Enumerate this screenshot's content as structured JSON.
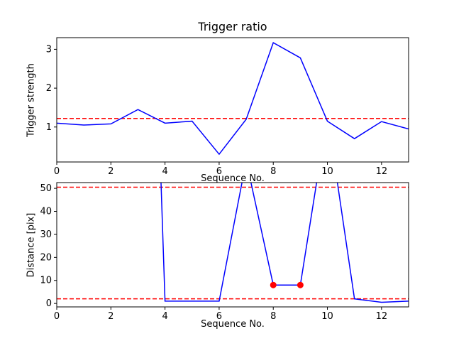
{
  "figure": {
    "background": "#ffffff",
    "line_color": "#0000ff",
    "threshold_color": "#ff0000",
    "marker_color": "#ff0000"
  },
  "chart_data": [
    {
      "type": "line",
      "title": "Trigger ratio",
      "xlabel": "Sequence No.",
      "ylabel": "Trigger strength",
      "x": [
        0,
        1,
        2,
        3,
        4,
        5,
        6,
        7,
        8,
        9,
        10,
        11,
        12,
        13
      ],
      "values": [
        1.1,
        1.05,
        1.08,
        1.45,
        1.1,
        1.15,
        0.3,
        1.2,
        3.17,
        2.78,
        1.15,
        0.7,
        1.14,
        0.95
      ],
      "thresholds": [
        1.22
      ],
      "threshold_style": "dashed",
      "xlim": [
        0,
        13
      ],
      "ylim": [
        0.1,
        3.3
      ],
      "xticks": [
        0,
        2,
        4,
        6,
        8,
        10,
        12
      ],
      "yticks": [
        1,
        2,
        3
      ],
      "line_color": "#0000ff",
      "threshold_color": "#ff0000",
      "legend": null,
      "grid": false
    },
    {
      "type": "line",
      "title": "",
      "xlabel": "Sequence No.",
      "ylabel": "Distance [pix]",
      "x": [
        0,
        1,
        2,
        3,
        4,
        5,
        6,
        7,
        8,
        9,
        10,
        11,
        12,
        13
      ],
      "values": [
        350,
        350,
        350,
        350,
        1,
        1,
        1,
        62,
        8,
        8,
        82,
        2,
        0.5,
        1
      ],
      "values_note": "values above ~52.5 are clipped by the axes (off-scale)",
      "thresholds": [
        50.5,
        2
      ],
      "threshold_style": "dashed",
      "markers": [
        {
          "x": 8,
          "y": 8
        },
        {
          "x": 9,
          "y": 8
        }
      ],
      "marker_color": "#ff0000",
      "xlim": [
        0,
        13
      ],
      "ylim": [
        -1.5,
        52.5
      ],
      "xticks": [
        0,
        2,
        4,
        6,
        8,
        10,
        12
      ],
      "yticks": [
        0,
        10,
        20,
        30,
        40,
        50
      ],
      "line_color": "#0000ff",
      "threshold_color": "#ff0000",
      "legend": null,
      "grid": false
    }
  ]
}
